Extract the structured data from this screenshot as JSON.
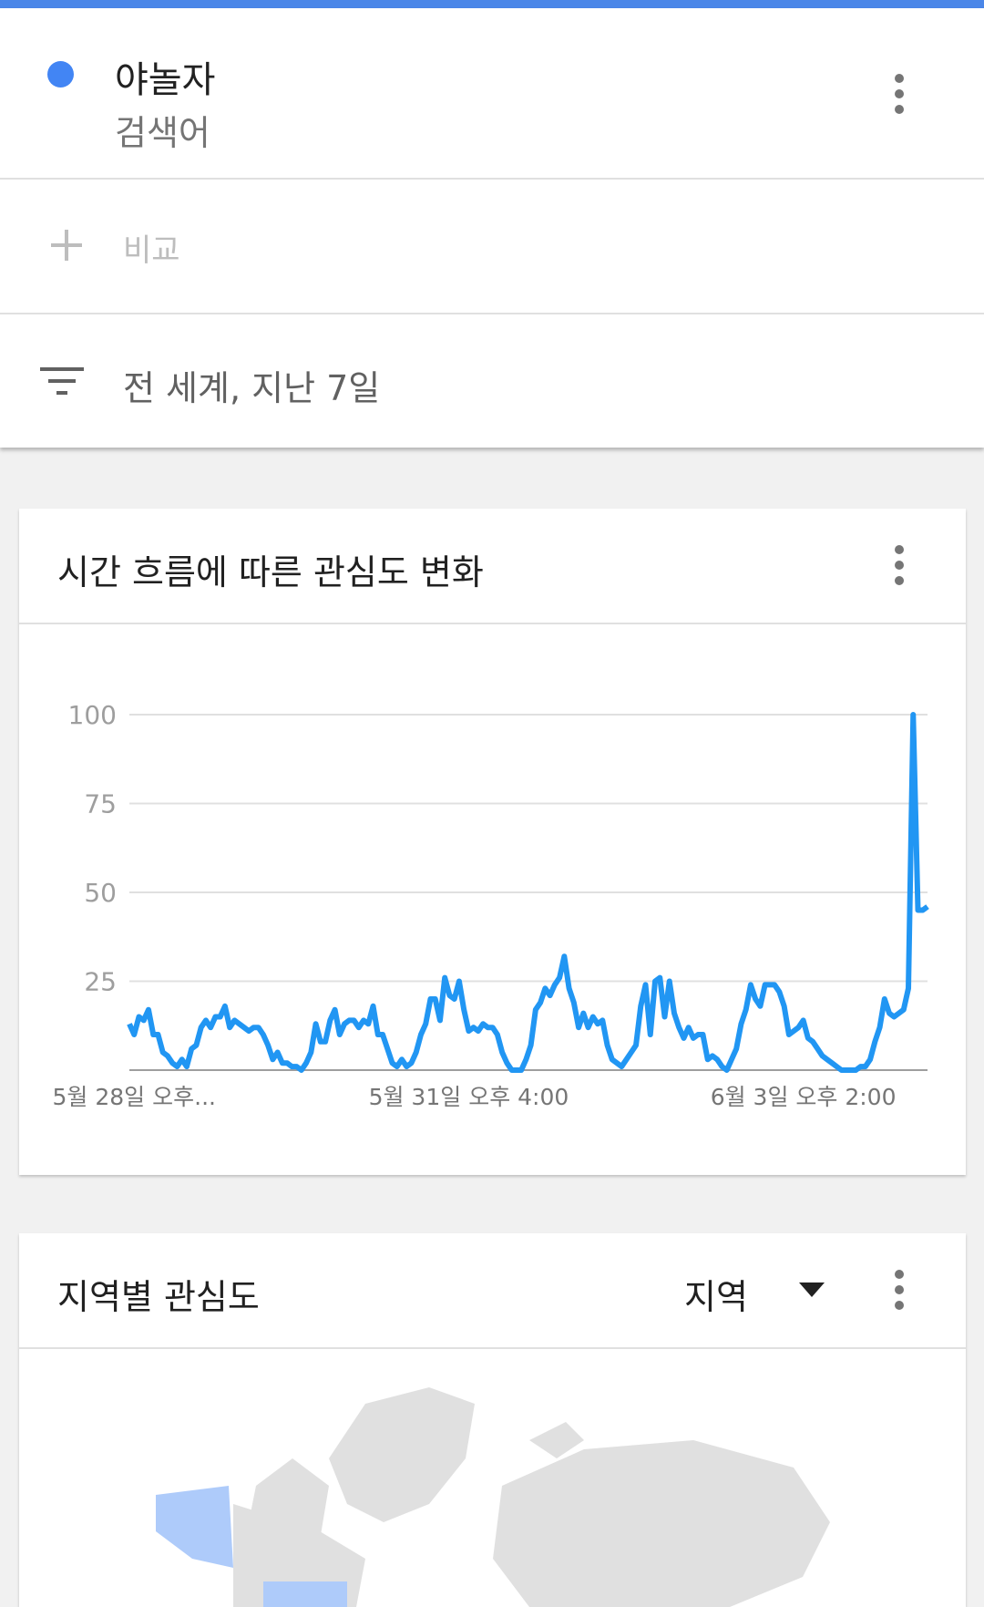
{
  "header": {
    "term": "야놀자",
    "term_type": "검색어"
  },
  "compare": "비교",
  "filter": "전 세계, 지난 7일",
  "chart_card": {
    "title": "시간 흐름에 따른 관심도 변화"
  },
  "chart_data": {
    "type": "line",
    "color": "#2196f3",
    "grid": true,
    "ylim": [
      0,
      100
    ],
    "yticks": [
      25,
      50,
      75,
      100
    ],
    "categories": [
      null,
      "5월 28일 오후...",
      null,
      null,
      null,
      null,
      null,
      null,
      null,
      null,
      null,
      null,
      null,
      null,
      null,
      null,
      null,
      null,
      null,
      null,
      null,
      null,
      null,
      null,
      null,
      null,
      null,
      null,
      null,
      null,
      null,
      null,
      null,
      null,
      null,
      null,
      null,
      null,
      null,
      null,
      null,
      null,
      null,
      null,
      null,
      null,
      null,
      null,
      null,
      null,
      null,
      null,
      null,
      null,
      null,
      null,
      null,
      null,
      null,
      null,
      null,
      null,
      null,
      null,
      null,
      null,
      null,
      null,
      null,
      null,
      null,
      "5월 31일 오후 4:00",
      null,
      null,
      null,
      null,
      null,
      null,
      null,
      null,
      null,
      null,
      null,
      null,
      null,
      null,
      null,
      null,
      null,
      null,
      null,
      null,
      null,
      null,
      null,
      null,
      null,
      null,
      null,
      null,
      null,
      null,
      null,
      null,
      null,
      null,
      null,
      null,
      null,
      null,
      null,
      null,
      null,
      null,
      null,
      null,
      null,
      null,
      null,
      null,
      null,
      null,
      null,
      null,
      null,
      null,
      null,
      null,
      null,
      null,
      null,
      null,
      null,
      null,
      null,
      null,
      null,
      null,
      null,
      null,
      null,
      "6월 3일 오후 2:00",
      null,
      null,
      null,
      null,
      null,
      null,
      null,
      null,
      null,
      null,
      null,
      null,
      null,
      null,
      null,
      null,
      null,
      null,
      null,
      null,
      null,
      null,
      null,
      null,
      null,
      null
    ],
    "values": [
      13,
      10,
      15,
      14,
      17,
      10,
      10,
      5,
      4,
      2,
      1,
      3,
      1,
      6,
      7,
      12,
      14,
      12,
      15,
      15,
      18,
      12,
      14,
      13,
      12,
      11,
      12,
      12,
      10,
      7,
      3,
      5,
      2,
      2,
      1,
      1,
      0,
      2,
      5,
      13,
      8,
      8,
      14,
      17,
      10,
      13,
      14,
      14,
      12,
      14,
      13,
      18,
      10,
      10,
      6,
      2,
      1,
      3,
      1,
      2,
      5,
      10,
      13,
      20,
      20,
      14,
      26,
      21,
      20,
      25,
      17,
      11,
      12,
      11,
      13,
      12,
      12,
      10,
      5,
      2,
      0,
      0,
      0,
      3,
      7,
      17,
      19,
      23,
      21,
      24,
      26,
      32,
      23,
      19,
      12,
      16,
      12,
      15,
      13,
      14,
      7,
      3,
      2,
      1,
      3,
      5,
      7,
      18,
      24,
      10,
      25,
      26,
      15,
      25,
      16,
      12,
      9,
      12,
      9,
      10,
      10,
      3,
      4,
      3,
      1,
      0,
      3,
      6,
      13,
      17,
      24,
      20,
      18,
      24,
      24,
      24,
      22,
      18,
      10,
      11,
      12,
      14,
      9,
      8,
      6,
      4,
      3,
      2,
      1,
      0,
      0,
      0,
      0,
      1,
      1,
      3,
      8,
      12,
      20,
      16,
      15,
      16,
      17,
      23,
      100,
      45,
      45,
      46
    ]
  },
  "region_card": {
    "title": "지역별 관심도",
    "dropdown": "지역"
  }
}
